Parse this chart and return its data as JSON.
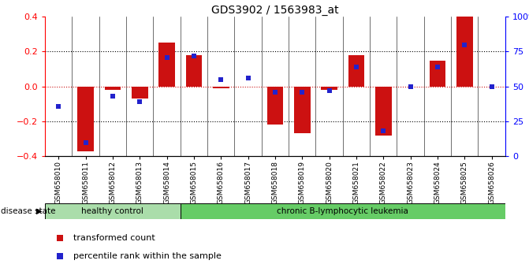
{
  "title": "GDS3902 / 1563983_at",
  "samples": [
    "GSM658010",
    "GSM658011",
    "GSM658012",
    "GSM658013",
    "GSM658014",
    "GSM658015",
    "GSM658016",
    "GSM658017",
    "GSM658018",
    "GSM658019",
    "GSM658020",
    "GSM658021",
    "GSM658022",
    "GSM658023",
    "GSM658024",
    "GSM658025",
    "GSM658026"
  ],
  "red_bars": [
    0.0,
    -0.37,
    -0.02,
    -0.07,
    0.25,
    0.18,
    -0.01,
    0.0,
    -0.22,
    -0.27,
    -0.02,
    0.18,
    -0.28,
    0.0,
    0.15,
    0.4,
    0.0
  ],
  "blue_dots_pct": [
    0.36,
    0.1,
    0.43,
    0.39,
    0.71,
    0.72,
    0.55,
    0.56,
    0.46,
    0.46,
    0.47,
    0.64,
    0.18,
    0.5,
    0.64,
    0.8,
    0.5
  ],
  "healthy_control_count": 5,
  "bar_color": "#cc1111",
  "dot_color": "#2222cc",
  "ylim_left": [
    -0.4,
    0.4
  ],
  "yticks_left": [
    -0.4,
    -0.2,
    0.0,
    0.2,
    0.4
  ],
  "ytick_labels_right": [
    "0",
    "25",
    "50",
    "75",
    "100%"
  ],
  "healthy_label": "healthy control",
  "disease_label": "chronic B-lymphocytic leukemia",
  "disease_state_label": "disease state",
  "legend_red": "transformed count",
  "legend_blue": "percentile rank within the sample",
  "bar_width": 0.6
}
